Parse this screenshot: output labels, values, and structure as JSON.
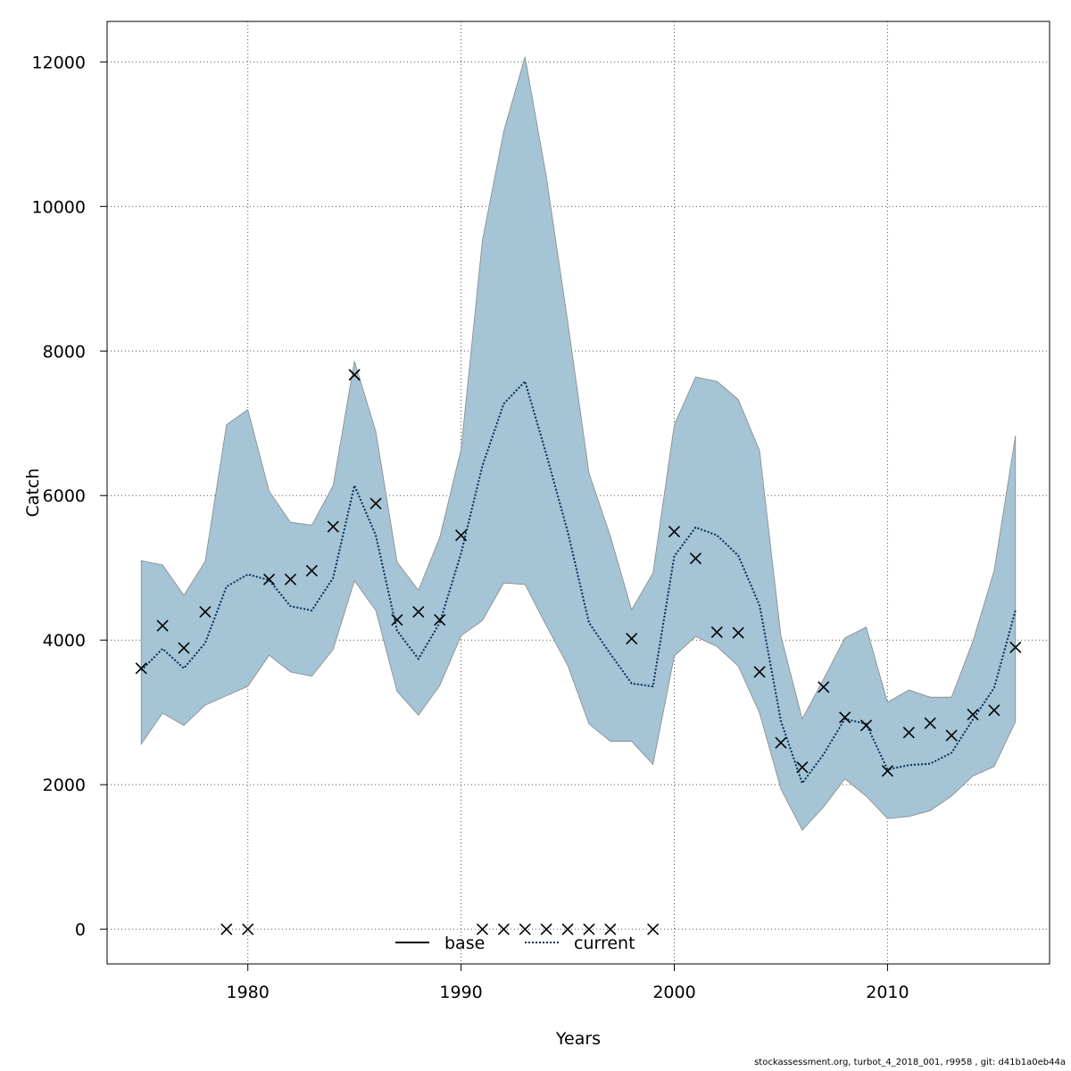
{
  "chart_data": {
    "type": "line",
    "xlabel": "Years",
    "ylabel": "Catch",
    "xlim": [
      1973.3,
      1977.5
    ],
    "x_range": [
      1973.4,
      2017.6
    ],
    "ylim": [
      -480,
      12560
    ],
    "x_ticks": [
      1980,
      1990,
      2000,
      2010
    ],
    "x_tick_labels": [
      "1980",
      "1990",
      "2000",
      "2010"
    ],
    "y_ticks": [
      0,
      2000,
      4000,
      6000,
      8000,
      10000,
      12000
    ],
    "y_tick_labels": [
      "0",
      "2000",
      "4000",
      "6000",
      "8000",
      "10000",
      "12000"
    ],
    "grid": true,
    "legend_position": "bottom",
    "legend": [
      {
        "label": "base",
        "color": "#000000",
        "style": "solid"
      },
      {
        "label": "current",
        "color": "#00305a",
        "style": "dotted"
      }
    ],
    "band_color": "#a5c4d5",
    "band_edge_color": "#888888",
    "years": [
      1975,
      1976,
      1977,
      1978,
      1979,
      1980,
      1981,
      1982,
      1983,
      1984,
      1985,
      1986,
      1987,
      1988,
      1989,
      1990,
      1991,
      1992,
      1993,
      1994,
      1995,
      1996,
      1997,
      1998,
      1999,
      2000,
      2001,
      2002,
      2003,
      2004,
      2005,
      2006,
      2007,
      2008,
      2009,
      2010,
      2011,
      2012,
      2013,
      2014,
      2015,
      2016
    ],
    "series": [
      {
        "name": "current",
        "values": [
          3580,
          3880,
          3610,
          3960,
          4740,
          4910,
          4830,
          4470,
          4410,
          4860,
          6140,
          5450,
          4130,
          3740,
          4240,
          5200,
          6410,
          7270,
          7580,
          6570,
          5500,
          4240,
          3810,
          3400,
          3360,
          5160,
          5560,
          5450,
          5170,
          4480,
          2880,
          2020,
          2420,
          2910,
          2840,
          2210,
          2270,
          2290,
          2440,
          2900,
          3340,
          4410
        ]
      }
    ],
    "band_upper": [
      5100,
      5040,
      4620,
      5090,
      6980,
      7190,
      6060,
      5630,
      5590,
      6140,
      7860,
      6890,
      5080,
      4690,
      5420,
      6640,
      9530,
      11040,
      12070,
      10410,
      8410,
      6310,
      5440,
      4420,
      4930,
      6980,
      7640,
      7580,
      7330,
      6620,
      4060,
      2910,
      3460,
      4030,
      4180,
      3140,
      3310,
      3210,
      3210,
      3980,
      4960,
      6830
    ],
    "band_lower": [
      2560,
      2990,
      2820,
      3100,
      3230,
      3360,
      3790,
      3560,
      3500,
      3870,
      4820,
      4410,
      3290,
      2960,
      3370,
      4060,
      4270,
      4790,
      4770,
      4200,
      3650,
      2840,
      2600,
      2600,
      2280,
      3780,
      4050,
      3910,
      3640,
      2990,
      1940,
      1370,
      1690,
      2080,
      1840,
      1530,
      1560,
      1640,
      1840,
      2120,
      2250,
      2870
    ],
    "observed": [
      3610,
      4200,
      3890,
      4390,
      0,
      0,
      4840,
      4840,
      4960,
      5570,
      7670,
      5890,
      4280,
      4390,
      4280,
      5450,
      0,
      0,
      0,
      0,
      0,
      0,
      0,
      4020,
      0,
      5500,
      5130,
      4110,
      4100,
      3560,
      2580,
      2240,
      3350,
      2930,
      2820,
      2190,
      2720,
      2850,
      2680,
      2970,
      3030,
      3900
    ]
  },
  "footer": "stockassessment.org, turbot_4_2018_001, r9958 , git: d41b1a0eb44a"
}
